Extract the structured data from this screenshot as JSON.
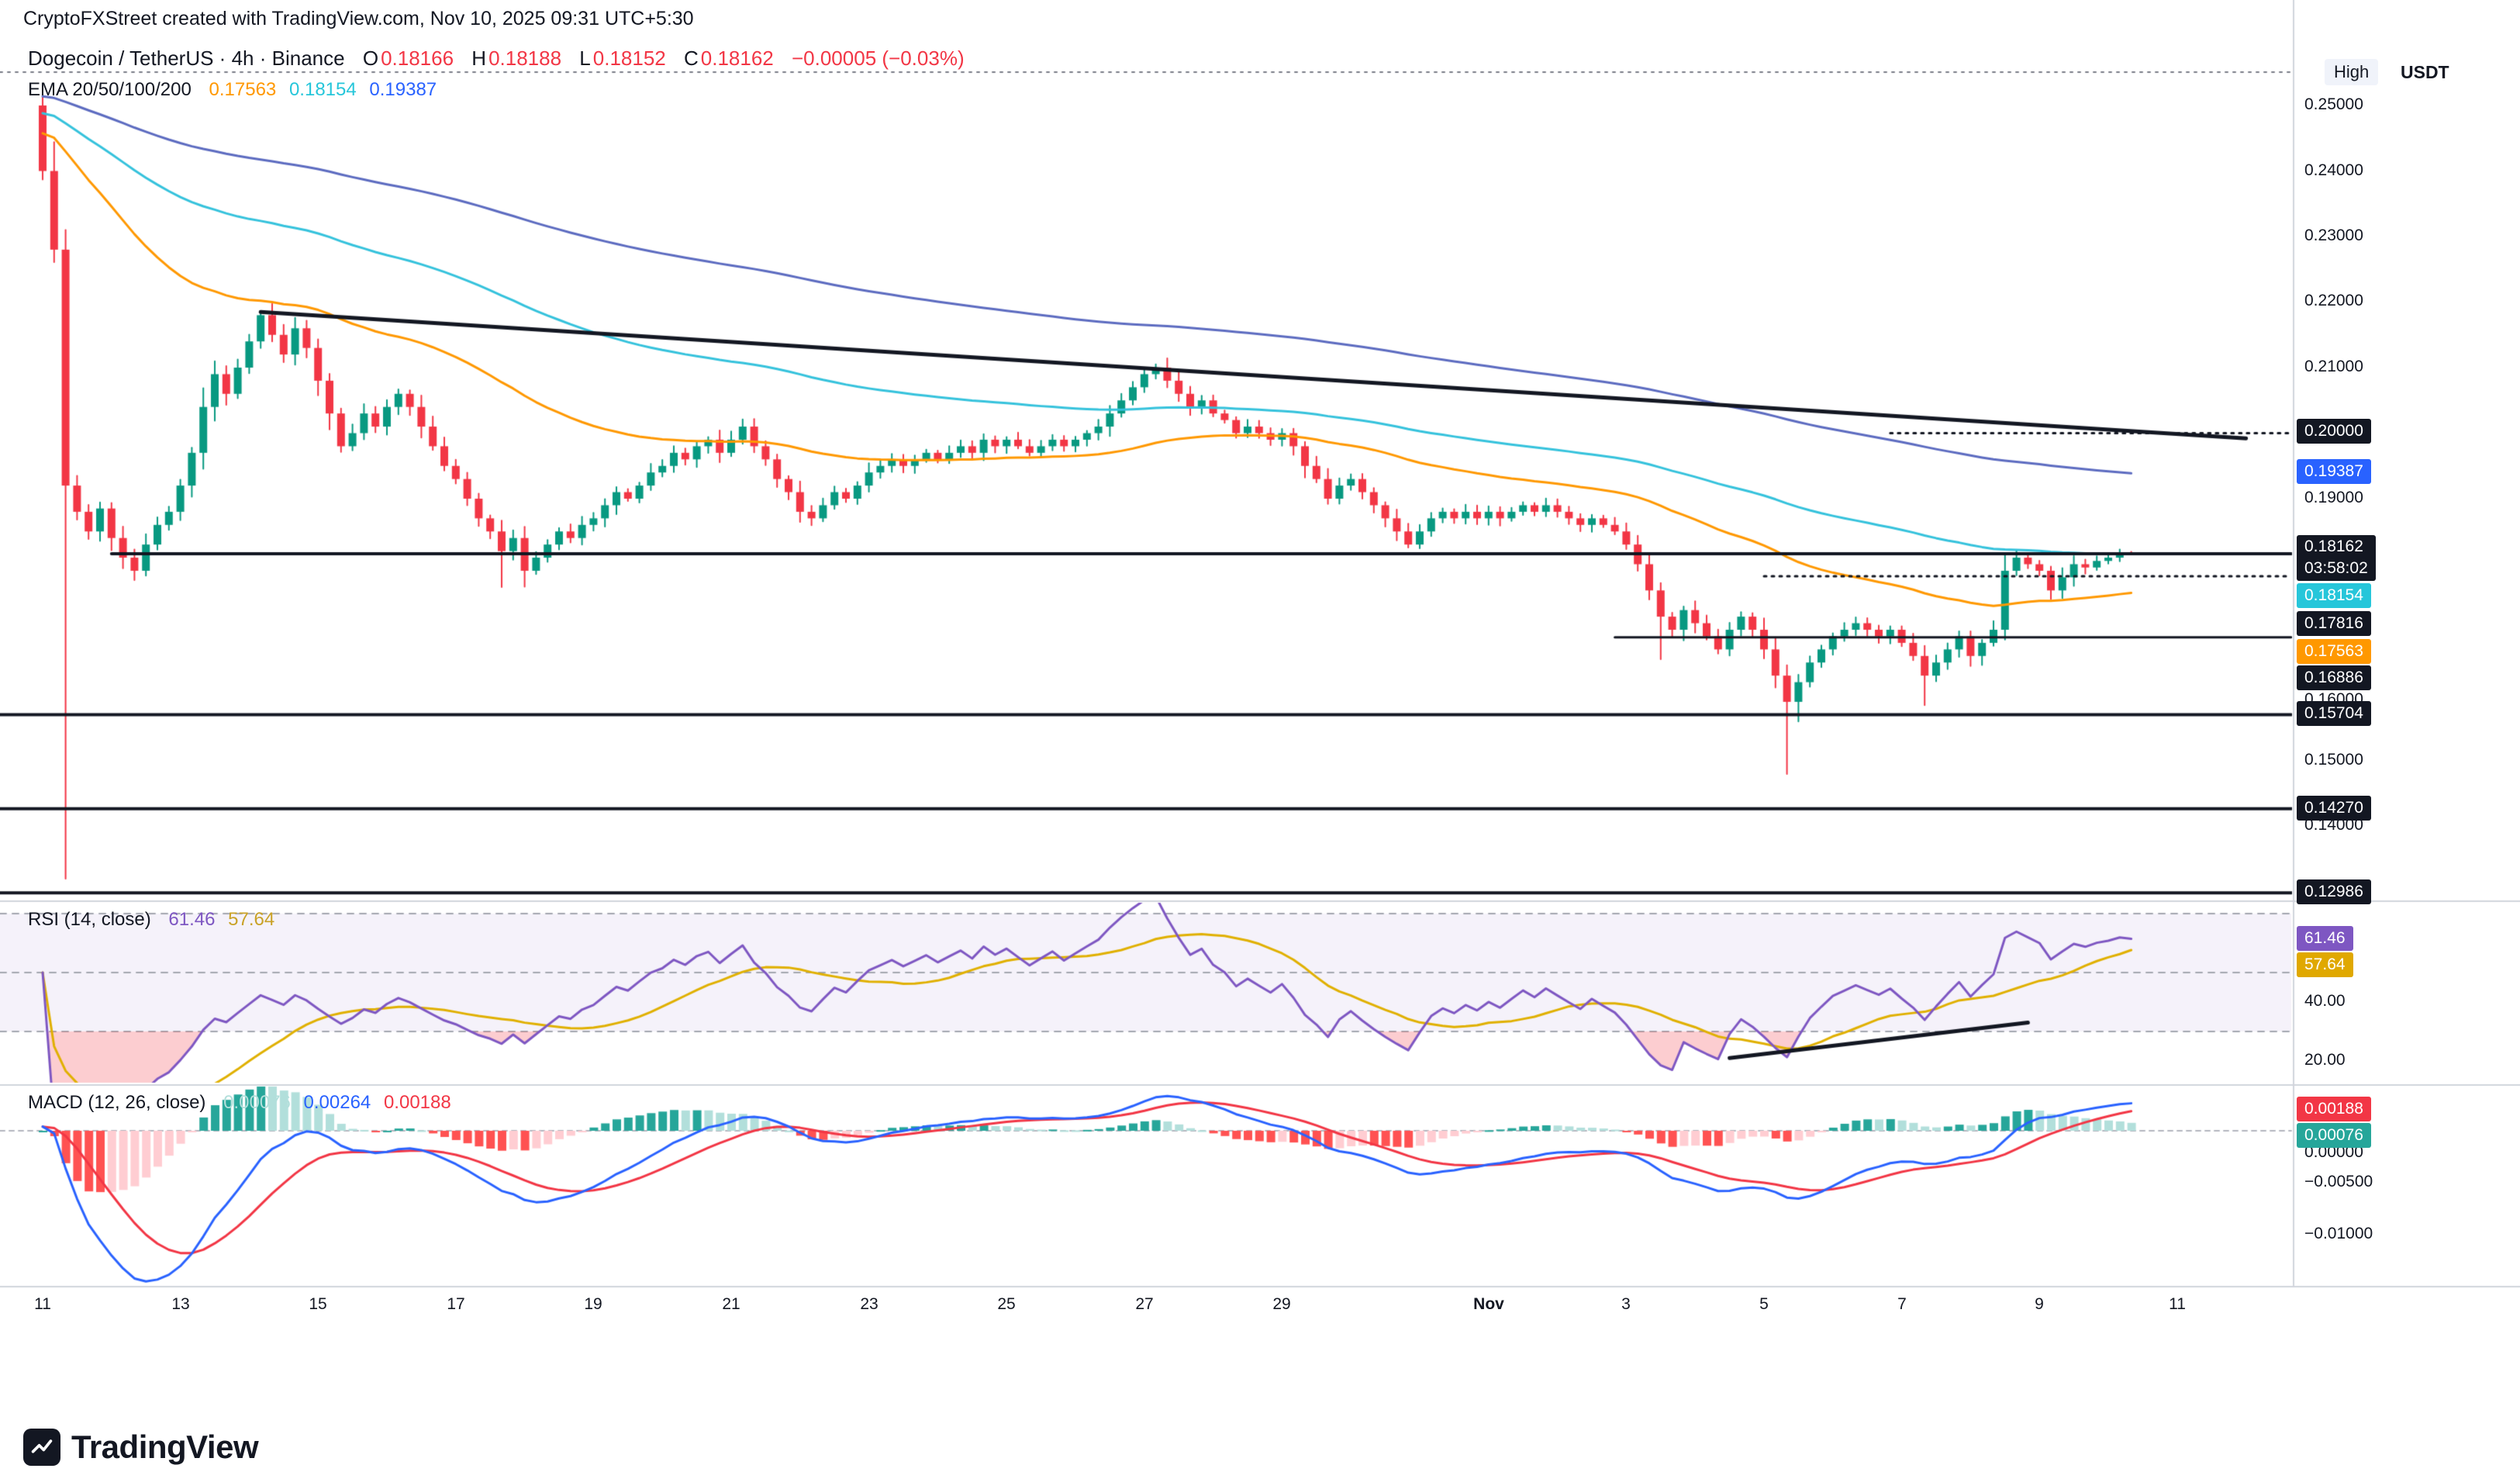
{
  "header": {
    "credit": "CryptoFXStreet created with TradingView.com, Nov 10, 2025 09:31 UTC+5:30"
  },
  "symbol_legend": {
    "name": "Dogecoin / TetherUS",
    "sep": "·",
    "interval": "4h",
    "exchange": "Binance",
    "o_label": "O",
    "o": "0.18166",
    "h_label": "H",
    "h": "0.18188",
    "l_label": "L",
    "l": "0.18152",
    "c_label": "C",
    "c": "0.18162",
    "change": "−0.00005 (−0.03%)"
  },
  "ema_legend": {
    "label": "EMA 20/50/100/200",
    "v50": "0.17563",
    "v100": "0.18154",
    "v200": "0.19387"
  },
  "rsi_legend": {
    "label": "RSI (14, close)",
    "value": "61.46",
    "ma_value": "57.64"
  },
  "macd_legend": {
    "label": "MACD (12, 26, close)",
    "hist": "0.00076",
    "macd": "0.00264",
    "signal": "0.00188"
  },
  "price_axis": {
    "currency": "USDT",
    "high_label": "High",
    "ticks": [
      "0.25000",
      "0.24000",
      "0.23000",
      "0.22000",
      "0.21000",
      "0.19000",
      "0.16000",
      "0.15000",
      "0.14000"
    ],
    "badges": {
      "level_020": "0.20000",
      "ema200": "0.19387",
      "last": "0.18162",
      "countdown": "03:58:02",
      "ema100": "0.18154",
      "level_017816": "0.17816",
      "ema50": "0.17563",
      "level_016886": "0.16886",
      "level_015704": "0.15704",
      "level_014270": "0.14270",
      "level_012986": "0.12986"
    }
  },
  "rsi_axis": {
    "badge_rsi": "61.46",
    "badge_ma": "57.64",
    "tick_40": "40.00",
    "tick_20": "20.00"
  },
  "macd_axis": {
    "badge_signal": "0.00188",
    "badge_hist": "0.00076",
    "tick_0": "0.00000",
    "tick_n5": "−0.00500",
    "tick_n10": "−0.01000"
  },
  "time_axis": {
    "labels": [
      "11",
      "13",
      "15",
      "17",
      "19",
      "21",
      "23",
      "25",
      "27",
      "29",
      "Nov",
      "3",
      "5",
      "7",
      "9",
      "11"
    ]
  },
  "footer": {
    "brand": "TradingView"
  },
  "colors": {
    "up": "#089981",
    "down": "#F23645",
    "ema50": "#FF9800",
    "ema100": "#35C2DC",
    "ema200": "#5C6BC0",
    "rsi": "#7E57C2",
    "rsi_ma": "#E0B000",
    "macd": "#2962FF",
    "macd_signal": "#F23645",
    "hist_up": "#26A69A",
    "hist_up_light": "#B2DFDB",
    "hist_down": "#FF5252",
    "hist_down_light": "#FFCDD2",
    "trend": "#131722",
    "axis_line": "#D1D4DC",
    "dashed": "#787B86"
  },
  "chart_data": {
    "type": "candlestick",
    "symbol": "Dogecoin / TetherUS",
    "exchange": "Binance",
    "interval": "4h",
    "price_range": [
      0.12986,
      0.2551
    ],
    "last_candle": {
      "o": 0.18166,
      "h": 0.18188,
      "l": 0.18152,
      "c": 0.18162,
      "change": -5e-05,
      "change_pct": -0.03
    },
    "first_open": 0.25,
    "closes": [
      0.24,
      0.228,
      0.192,
      0.188,
      0.185,
      0.1885,
      0.184,
      0.181,
      0.179,
      0.183,
      0.186,
      0.188,
      0.192,
      0.197,
      0.204,
      0.209,
      0.206,
      0.21,
      0.214,
      0.218,
      0.215,
      0.212,
      0.216,
      0.213,
      0.208,
      0.203,
      0.198,
      0.2,
      0.203,
      0.201,
      0.204,
      0.206,
      0.204,
      0.201,
      0.198,
      0.195,
      0.193,
      0.19,
      0.187,
      0.185,
      0.182,
      0.184,
      0.179,
      0.181,
      0.183,
      0.185,
      0.184,
      0.186,
      0.187,
      0.189,
      0.191,
      0.19,
      0.192,
      0.194,
      0.195,
      0.197,
      0.196,
      0.198,
      0.199,
      0.197,
      0.199,
      0.201,
      0.198,
      0.196,
      0.193,
      0.191,
      0.188,
      0.187,
      0.189,
      0.191,
      0.19,
      0.192,
      0.194,
      0.195,
      0.196,
      0.195,
      0.196,
      0.197,
      0.196,
      0.197,
      0.198,
      0.197,
      0.199,
      0.198,
      0.199,
      0.198,
      0.197,
      0.198,
      0.199,
      0.198,
      0.199,
      0.2,
      0.201,
      0.203,
      0.205,
      0.207,
      0.209,
      0.21,
      0.208,
      0.206,
      0.204,
      0.205,
      0.203,
      0.202,
      0.2,
      0.201,
      0.2,
      0.199,
      0.2,
      0.198,
      0.195,
      0.193,
      0.19,
      0.192,
      0.193,
      0.191,
      0.189,
      0.187,
      0.185,
      0.183,
      0.185,
      0.187,
      0.188,
      0.187,
      0.188,
      0.187,
      0.188,
      0.187,
      0.188,
      0.189,
      0.188,
      0.189,
      0.188,
      0.187,
      0.186,
      0.187,
      0.186,
      0.185,
      0.183,
      0.18,
      0.176,
      0.172,
      0.17,
      0.173,
      0.171,
      0.169,
      0.167,
      0.17,
      0.172,
      0.17,
      0.167,
      0.163,
      0.159,
      0.162,
      0.165,
      0.167,
      0.169,
      0.17,
      0.171,
      0.17,
      0.169,
      0.17,
      0.168,
      0.166,
      0.163,
      0.165,
      0.167,
      0.169,
      0.166,
      0.168,
      0.17,
      0.179,
      0.181,
      0.18,
      0.179,
      0.176,
      0.178,
      0.18,
      0.1795,
      0.1805,
      0.181,
      0.1818,
      0.18162
    ],
    "wick_overrides": {
      "2": {
        "h": 0.231,
        "l": 0.132
      },
      "19": {
        "h": 0.2185
      },
      "40": {
        "l": 0.1765
      },
      "97": {
        "h": 0.2105
      },
      "141": {
        "l": 0.1655
      },
      "152": {
        "l": 0.148
      },
      "153": {
        "l": 0.156
      },
      "164": {
        "l": 0.1585
      },
      "171": {
        "h": 0.1815
      },
      "182": {
        "o": 0.18166,
        "h": 0.18188,
        "l": 0.18152,
        "c": 0.18162
      }
    },
    "emas": {
      "periods": [
        50,
        100,
        200
      ],
      "seeds": {
        "50": 0.246,
        "100": 0.249,
        "200": 0.2515
      },
      "last_values": {
        "50": 0.17563,
        "100": 0.18154,
        "200": 0.19387
      }
    },
    "levels": [
      {
        "p": 0.2551,
        "style": "dotted",
        "from_i": -1,
        "c": "gray",
        "w": 2,
        "note": "High"
      },
      {
        "p": 0.2,
        "style": "dotted",
        "from_i": 161,
        "w": 3
      },
      {
        "p": 0.1816,
        "style": "solid",
        "from_i": 6,
        "w": 4
      },
      {
        "p": 0.17816,
        "style": "dotted",
        "from_i": 150,
        "w": 3
      },
      {
        "p": 0.16886,
        "style": "solid",
        "from_i": 137,
        "w": 3
      },
      {
        "p": 0.15704,
        "style": "solid",
        "from_i": -1,
        "w": 4
      },
      {
        "p": 0.1427,
        "style": "solid",
        "from_i": -1,
        "w": 4
      },
      {
        "p": 0.12986,
        "style": "solid",
        "from_i": -1,
        "w": 4
      }
    ],
    "trendlines": [
      {
        "pane": "price",
        "i1": 19,
        "p1": 0.2185,
        "i2": 192,
        "p2": 0.1992
      },
      {
        "pane": "rsi",
        "i1": 147,
        "p1": 21,
        "i2": 173,
        "p2": 33
      }
    ],
    "rsi": {
      "period": 14,
      "last": 61.46,
      "ma_last": 57.64,
      "overbought": 70,
      "mid": 50,
      "oversold": 30,
      "axis_ticks": [
        40,
        20
      ]
    },
    "macd": {
      "fast": 12,
      "slow": 26,
      "signal_period": 9,
      "seed": 0.235,
      "last_macd": 0.00264,
      "last_signal": 0.00188,
      "last_hist": 0.00076,
      "axis_ticks": [
        0,
        -0.005,
        -0.01
      ]
    }
  }
}
